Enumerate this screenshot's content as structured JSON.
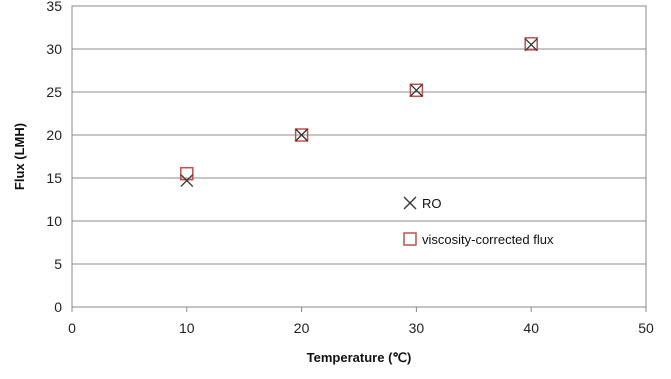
{
  "chart_data": {
    "type": "scatter",
    "title": "",
    "xlabel": "Temperature (℃)",
    "ylabel": "Flux (LMH)",
    "xlim": [
      0,
      50
    ],
    "ylim": [
      0,
      35
    ],
    "xticks": [
      "0",
      "10",
      "20",
      "30",
      "40",
      "50"
    ],
    "yticks": [
      "0",
      "5",
      "10",
      "15",
      "20",
      "25",
      "30",
      "35"
    ],
    "grid": "horizontal",
    "legend_position": "inside-right",
    "series": [
      {
        "name": "RO",
        "marker": "x",
        "color": "#333333",
        "x": [
          10,
          20,
          30,
          40
        ],
        "y": [
          14.7,
          20.0,
          25.2,
          30.5
        ]
      },
      {
        "name": "viscosity-corrected flux",
        "marker": "square-open",
        "color": "#c0504d",
        "x": [
          10,
          20,
          30,
          40
        ],
        "y": [
          15.5,
          20.0,
          25.2,
          30.6
        ]
      }
    ]
  }
}
